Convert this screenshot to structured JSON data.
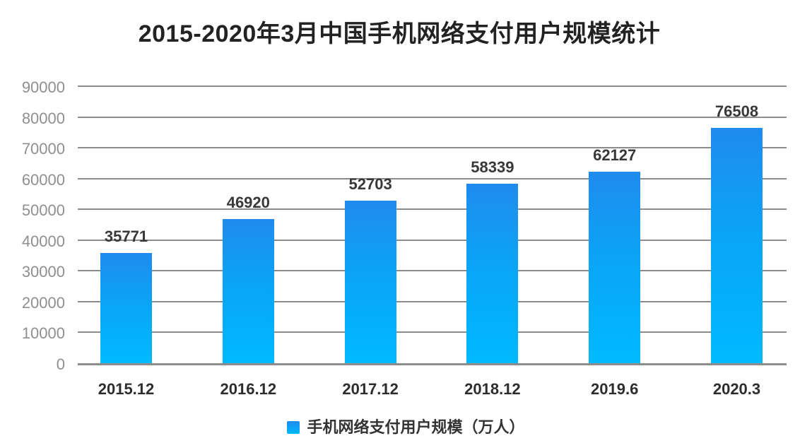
{
  "chart_data": {
    "type": "bar",
    "title": "2015-2020年3月中国手机网络支付用户规模统计",
    "categories": [
      "2015.12",
      "2016.12",
      "2017.12",
      "2018.12",
      "2019.6",
      "2020.3"
    ],
    "values": [
      35771,
      46920,
      52703,
      58339,
      62127,
      76508
    ],
    "legend": "手机网络支付用户规模（万人）",
    "xlabel": "",
    "ylabel": "",
    "ylim": [
      0,
      90000
    ],
    "yticks": [
      0,
      10000,
      20000,
      30000,
      40000,
      50000,
      60000,
      70000,
      80000,
      90000
    ],
    "grid": true,
    "legend_position": "bottom",
    "value_labels_shown": true,
    "colors": {
      "bar_gradient_top": "#1f8bee",
      "bar_gradient_bottom": "#00baff",
      "gridline": "#8c8c8c",
      "y_tick_label": "#8f8f8f",
      "x_tick_label": "#2d2d2d",
      "value_label": "#383838",
      "title": "#222222",
      "legend_text": "#333333",
      "background": "#ffffff"
    }
  }
}
